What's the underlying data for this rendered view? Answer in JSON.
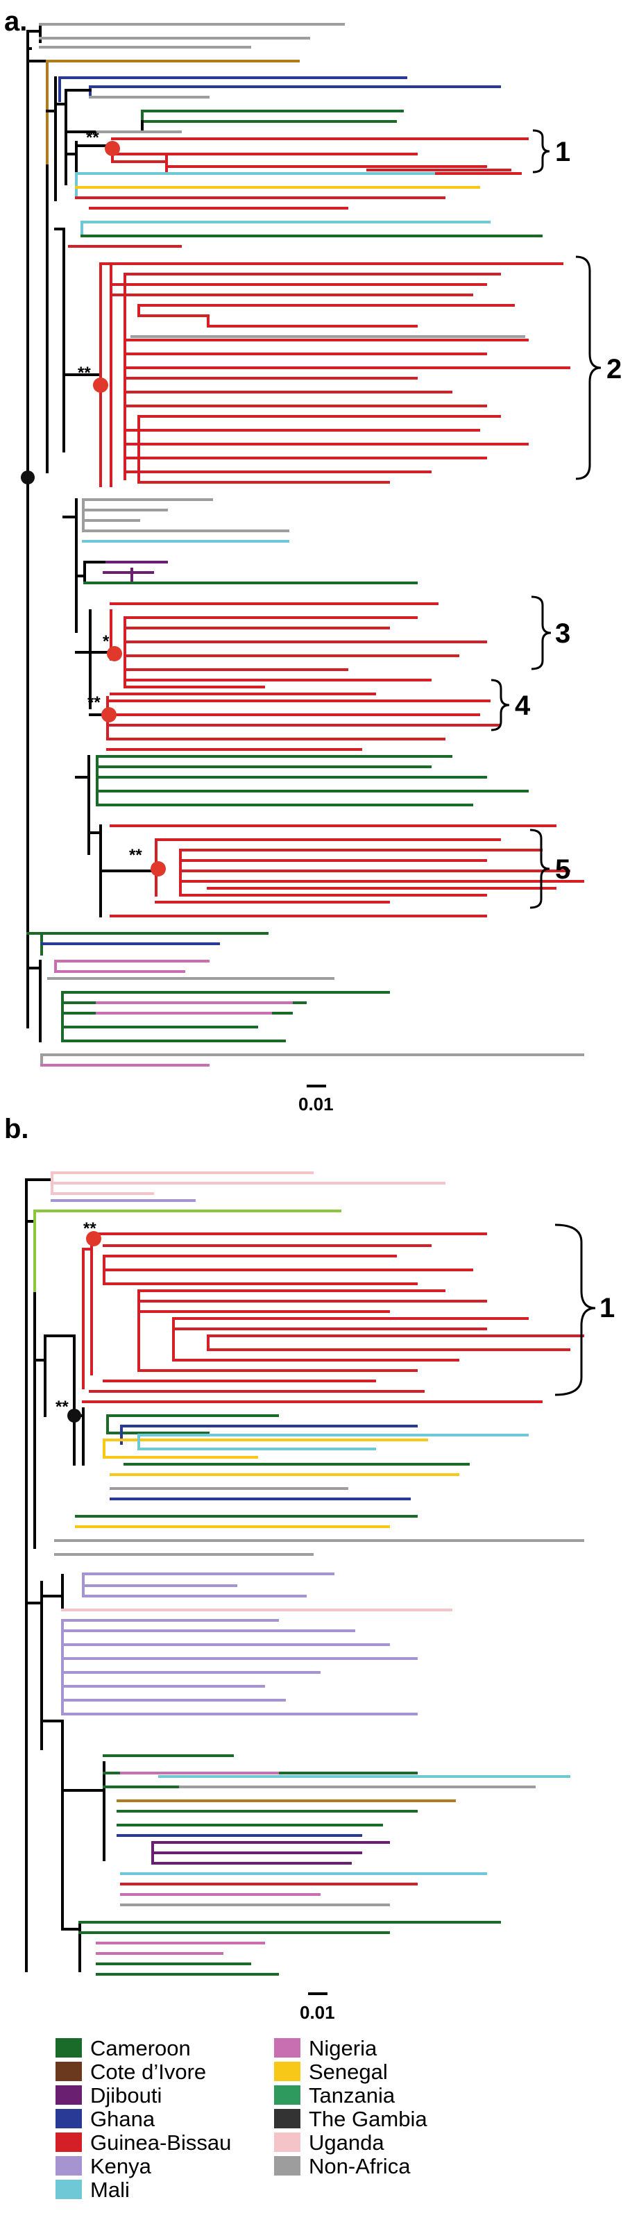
{
  "panels": [
    {
      "id": "a",
      "label": "a.",
      "scale_label": "0.01",
      "clades": [
        {
          "label": "1"
        },
        {
          "label": "2"
        },
        {
          "label": "3"
        },
        {
          "label": "4"
        },
        {
          "label": "5"
        }
      ],
      "support": [
        "**",
        "**",
        "*",
        "**",
        "**"
      ]
    },
    {
      "id": "b",
      "label": "b.",
      "scale_label": "0.01",
      "clades": [
        {
          "label": "1"
        }
      ],
      "support": [
        "**",
        "**"
      ]
    }
  ],
  "legend": [
    {
      "name": "Cameroon",
      "color": "#1a6b2a"
    },
    {
      "name": "Cote d’Ivore",
      "color": "#6b3a1e"
    },
    {
      "name": "Djibouti",
      "color": "#6a1f70"
    },
    {
      "name": "Ghana",
      "color": "#283a96"
    },
    {
      "name": "Guinea-Bissau",
      "color": "#d41f26"
    },
    {
      "name": "Kenya",
      "color": "#a594cf"
    },
    {
      "name": "Mali",
      "color": "#6fc8d6"
    },
    {
      "name": "Nigeria",
      "color": "#c76fb0"
    },
    {
      "name": "Senegal",
      "color": "#f7c818"
    },
    {
      "name": "Tanzania",
      "color": "#2f9a5e"
    },
    {
      "name": "The Gambia",
      "color": "#333333"
    },
    {
      "name": "Uganda",
      "color": "#f5c4c8"
    },
    {
      "name": "Non-Africa",
      "color": "#9d9d9d"
    }
  ],
  "colors": {
    "backbone": "#000000",
    "cameroon_b": "#1a6b2a",
    "brown": "#b07d1e",
    "node_red": "#e0392b",
    "node_black": "#111111",
    "yellowgreen": "#8cc63f"
  }
}
